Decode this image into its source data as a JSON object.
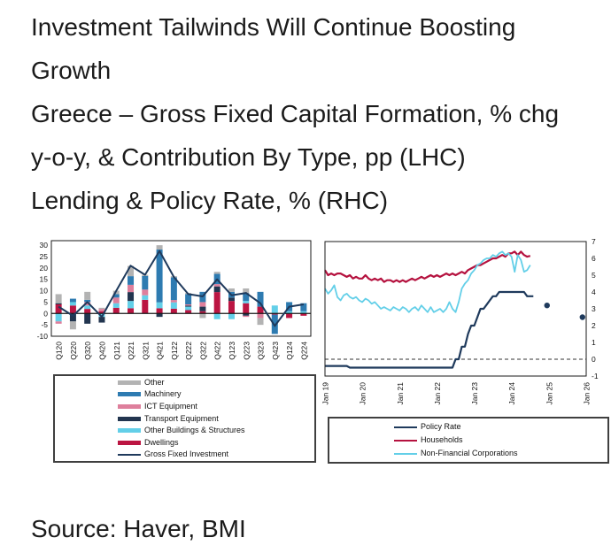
{
  "title_lines": [
    "Investment Tailwinds Will Continue Boosting",
    "Growth"
  ],
  "subtitle_lines": [
    "Greece – Gross Fixed Capital Formation, % chg",
    "y-o-y, & Contribution By Type, pp (LHC)",
    "Lending & Policy Rate, % (RHC)"
  ],
  "source": "Source: Haver, BMI",
  "colors": {
    "other": "#b3b3b3",
    "machinery": "#2e7bb1",
    "ict_equipment": "#de7f9c",
    "transport_equipment": "#22354f",
    "other_buildings": "#63cfe8",
    "dwellings": "#bb1542",
    "gross_fixed_investment_line": "#1f3a5c",
    "policy_rate": "#1f3a5c",
    "households": "#b5123f",
    "non_financial_corporations": "#63cfe8",
    "axis": "#1a1a1a"
  },
  "chart_data": [
    {
      "type": "bar",
      "subtype": "stacked-bars-with-line",
      "position": "LHC",
      "categories": [
        "Q120",
        "Q220",
        "Q320",
        "Q420",
        "Q121",
        "Q221",
        "Q321",
        "Q421",
        "Q122",
        "Q222",
        "Q322",
        "Q422",
        "Q123",
        "Q223",
        "Q323",
        "Q423",
        "Q124",
        "Q224"
      ],
      "series": [
        {
          "name": "Dwellings",
          "color": "#bb1542",
          "values": [
            4.0,
            3.5,
            2.0,
            1.0,
            2.5,
            2.3,
            6.0,
            2.3,
            2.1,
            1.5,
            1.0,
            9.4,
            5.5,
            4.5,
            3.0,
            -0.5,
            -2.0,
            -1.0
          ]
        },
        {
          "name": "Other Buildings & Structures",
          "color": "#63cfe8",
          "values": [
            -3.5,
            1.5,
            1.5,
            -1.5,
            2.0,
            3.2,
            2.0,
            2.6,
            2.8,
            1.5,
            0,
            -2.5,
            -2.5,
            1.0,
            0,
            3.5,
            1.0,
            1.0
          ]
        },
        {
          "name": "Transport Equipment",
          "color": "#22354f",
          "values": [
            0.5,
            -3.5,
            -4.5,
            -2.5,
            0,
            3.9,
            0,
            -1.5,
            0,
            0.5,
            2.0,
            2.5,
            1.5,
            -1.0,
            0,
            0,
            0,
            0
          ]
        },
        {
          "name": "ICT Equipment",
          "color": "#de7f9c",
          "values": [
            -1.0,
            0,
            1.5,
            1.0,
            2.5,
            3.2,
            2.5,
            0,
            1.0,
            0.5,
            2.0,
            1.0,
            0,
            -0.5,
            -2.0,
            0,
            0,
            0
          ]
        },
        {
          "name": "Machinery",
          "color": "#2e7bb1",
          "values": [
            0,
            1.5,
            1.0,
            0,
            1.5,
            3.8,
            6.0,
            23.2,
            10.0,
            4.5,
            4.5,
            4.5,
            2.5,
            3.5,
            6.5,
            -8.5,
            4.0,
            3.5
          ]
        },
        {
          "name": "Other",
          "color": "#b3b3b3",
          "values": [
            4.0,
            -3.5,
            3.5,
            0.5,
            1.5,
            4.5,
            0.5,
            1.9,
            0.5,
            0.5,
            -2.0,
            0.9,
            1.5,
            2.0,
            -3.0,
            0,
            0,
            0
          ]
        }
      ],
      "line_series": {
        "name": "Gross Fixed Investment",
        "color": "#1f3a5c",
        "values": [
          3,
          -1,
          5,
          -1.5,
          10,
          21,
          17,
          27.5,
          16,
          8.5,
          7.5,
          15,
          8,
          9,
          4.5,
          -5.5,
          3,
          4
        ]
      },
      "ylim": [
        -10,
        32
      ],
      "yticks": [
        30,
        25,
        20,
        15,
        10,
        5,
        0,
        -5,
        -10
      ],
      "grid": false,
      "legend_position": "below",
      "legend": [
        {
          "label": "Other",
          "color": "#b3b3b3",
          "kind": "bar"
        },
        {
          "label": "Machinery",
          "color": "#2e7bb1",
          "kind": "bar"
        },
        {
          "label": "ICT Equipment",
          "color": "#de7f9c",
          "kind": "bar"
        },
        {
          "label": "Transport Equipment",
          "color": "#22354f",
          "kind": "bar"
        },
        {
          "label": "Other Buildings & Structures",
          "color": "#63cfe8",
          "kind": "bar"
        },
        {
          "label": "Dwellings",
          "color": "#bb1542",
          "kind": "bar"
        },
        {
          "label": "Gross Fixed Investment",
          "color": "#1f3a5c",
          "kind": "line"
        }
      ]
    },
    {
      "type": "line",
      "position": "RHC",
      "x_start": "Jan 2019",
      "x_span_years": 7,
      "xticks": [
        "Jan 19",
        "Jan 20",
        "Jan 21",
        "Jan 22",
        "Jan 23",
        "Jan 24",
        "Jan 25",
        "Jan 26"
      ],
      "ylim": [
        -1,
        7
      ],
      "yticks": [
        7,
        6,
        5,
        4,
        3,
        2,
        1,
        0,
        -1
      ],
      "yaxis_side": "right",
      "zero_line_dashed": true,
      "grid": false,
      "series": [
        {
          "name": "Policy Rate",
          "color": "#1f3a5c",
          "width": 2.2,
          "values": [
            -0.4,
            -0.4,
            -0.4,
            -0.4,
            -0.4,
            -0.4,
            -0.4,
            -0.4,
            -0.5,
            -0.5,
            -0.5,
            -0.5,
            -0.5,
            -0.5,
            -0.5,
            -0.5,
            -0.5,
            -0.5,
            -0.5,
            -0.5,
            -0.5,
            -0.5,
            -0.5,
            -0.5,
            -0.5,
            -0.5,
            -0.5,
            -0.5,
            -0.5,
            -0.5,
            -0.5,
            -0.5,
            -0.5,
            -0.5,
            -0.5,
            -0.5,
            -0.5,
            -0.5,
            -0.5,
            -0.5,
            -0.5,
            -0.5,
            0.0,
            0.0,
            0.75,
            0.75,
            1.5,
            2.0,
            2.0,
            2.5,
            3.0,
            3.0,
            3.25,
            3.5,
            3.75,
            3.75,
            4.0,
            4.0,
            4.0,
            4.0,
            4.0,
            4.0,
            4.0,
            4.0,
            4.0,
            3.75,
            3.75,
            3.75
          ]
        },
        {
          "name": "Households",
          "color": "#b5123f",
          "width": 2.2,
          "values": [
            5.3,
            5.0,
            5.1,
            5.0,
            5.1,
            5.1,
            5.0,
            4.9,
            5.0,
            4.8,
            4.9,
            4.8,
            4.8,
            5.0,
            4.8,
            4.7,
            4.8,
            4.7,
            4.8,
            4.6,
            4.7,
            4.7,
            4.6,
            4.7,
            4.6,
            4.7,
            4.6,
            4.7,
            4.8,
            4.7,
            4.8,
            4.9,
            4.8,
            4.9,
            5.0,
            4.9,
            5.0,
            4.9,
            5.0,
            5.1,
            5.0,
            5.1,
            5.0,
            5.1,
            5.2,
            5.1,
            5.3,
            5.4,
            5.5,
            5.6,
            5.6,
            5.7,
            5.8,
            5.9,
            6.0,
            6.0,
            6.1,
            6.2,
            6.1,
            6.3,
            6.3,
            6.4,
            6.2,
            6.4,
            6.2,
            6.1,
            6.15
          ]
        },
        {
          "name": "Non-Financial Corporations",
          "color": "#63cfe8",
          "width": 1.8,
          "values": [
            4.2,
            3.9,
            4.1,
            4.4,
            3.7,
            3.5,
            3.8,
            3.9,
            3.7,
            3.6,
            3.7,
            3.5,
            3.4,
            3.6,
            3.5,
            3.3,
            3.4,
            3.2,
            3.0,
            3.1,
            3.0,
            2.9,
            3.1,
            3.0,
            2.9,
            3.1,
            3.0,
            2.8,
            3.0,
            3.1,
            2.9,
            3.2,
            3.0,
            2.8,
            3.1,
            2.8,
            2.9,
            3.0,
            2.8,
            3.0,
            3.4,
            3.0,
            2.8,
            3.4,
            4.2,
            4.5,
            4.7,
            5.1,
            5.3,
            5.6,
            5.7,
            5.9,
            6.0,
            6.0,
            6.2,
            6.1,
            6.3,
            6.4,
            6.2,
            6.3,
            6.1,
            5.2,
            6.2,
            5.9,
            5.2,
            5.3,
            5.6
          ]
        }
      ],
      "forecast_dots": [
        {
          "series": "Policy Rate",
          "years_from_start": 5.95,
          "value": 3.2
        },
        {
          "series": "Policy Rate",
          "years_from_start": 6.9,
          "value": 2.5
        }
      ],
      "legend_position": "below",
      "legend": [
        {
          "label": "Policy Rate",
          "color": "#1f3a5c",
          "kind": "line"
        },
        {
          "label": "Households",
          "color": "#b5123f",
          "kind": "line"
        },
        {
          "label": "Non-Financial Corporations",
          "color": "#63cfe8",
          "kind": "line"
        }
      ]
    }
  ]
}
